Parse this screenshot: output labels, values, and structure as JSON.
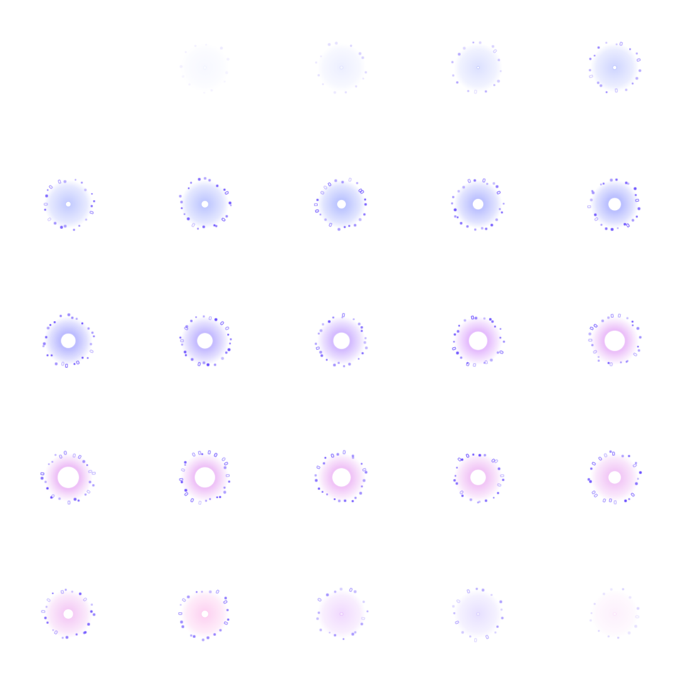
{
  "sequence": {
    "rows": 5,
    "columns": 5,
    "colors": {
      "background": "#ffffff",
      "ring_dot": "#5a3cff",
      "core_blue": "#6a7dff",
      "core_violet": "#c77dff",
      "core_pink": "#ff8fd8"
    },
    "frames": [
      {
        "index": 1,
        "intensity": 0.0,
        "hole": 0.0,
        "hue": 0.0
      },
      {
        "index": 2,
        "intensity": 0.1,
        "hole": 0.0,
        "hue": 0.0
      },
      {
        "index": 3,
        "intensity": 0.22,
        "hole": 0.0,
        "hue": 0.0
      },
      {
        "index": 4,
        "intensity": 0.4,
        "hole": 0.02,
        "hue": 0.0
      },
      {
        "index": 5,
        "intensity": 0.55,
        "hole": 0.05,
        "hue": 0.0
      },
      {
        "index": 6,
        "intensity": 0.68,
        "hole": 0.08,
        "hue": 0.0
      },
      {
        "index": 7,
        "intensity": 0.74,
        "hole": 0.12,
        "hue": 0.0
      },
      {
        "index": 8,
        "intensity": 0.8,
        "hole": 0.16,
        "hue": 0.0
      },
      {
        "index": 9,
        "intensity": 0.85,
        "hole": 0.2,
        "hue": 0.05
      },
      {
        "index": 10,
        "intensity": 0.9,
        "hole": 0.24,
        "hue": 0.05
      },
      {
        "index": 11,
        "intensity": 0.95,
        "hole": 0.28,
        "hue": 0.1
      },
      {
        "index": 12,
        "intensity": 0.96,
        "hole": 0.3,
        "hue": 0.2
      },
      {
        "index": 13,
        "intensity": 0.96,
        "hole": 0.32,
        "hue": 0.35
      },
      {
        "index": 14,
        "intensity": 0.96,
        "hole": 0.36,
        "hue": 0.55
      },
      {
        "index": 15,
        "intensity": 0.95,
        "hole": 0.4,
        "hue": 0.65
      },
      {
        "index": 16,
        "intensity": 0.95,
        "hole": 0.42,
        "hue": 0.7
      },
      {
        "index": 17,
        "intensity": 0.92,
        "hole": 0.4,
        "hue": 0.7
      },
      {
        "index": 18,
        "intensity": 0.9,
        "hole": 0.36,
        "hue": 0.72
      },
      {
        "index": 19,
        "intensity": 0.86,
        "hole": 0.3,
        "hue": 0.74
      },
      {
        "index": 20,
        "intensity": 0.8,
        "hole": 0.24,
        "hue": 0.74
      },
      {
        "index": 21,
        "intensity": 0.74,
        "hole": 0.18,
        "hue": 0.78
      },
      {
        "index": 22,
        "intensity": 0.66,
        "hole": 0.12,
        "hue": 0.95
      },
      {
        "index": 23,
        "intensity": 0.52,
        "hole": 0.0,
        "hue": 0.55
      },
      {
        "index": 24,
        "intensity": 0.42,
        "hole": 0.0,
        "hue": 0.25
      },
      {
        "index": 25,
        "intensity": 0.22,
        "hole": 0.0,
        "hue": 0.8
      }
    ]
  }
}
